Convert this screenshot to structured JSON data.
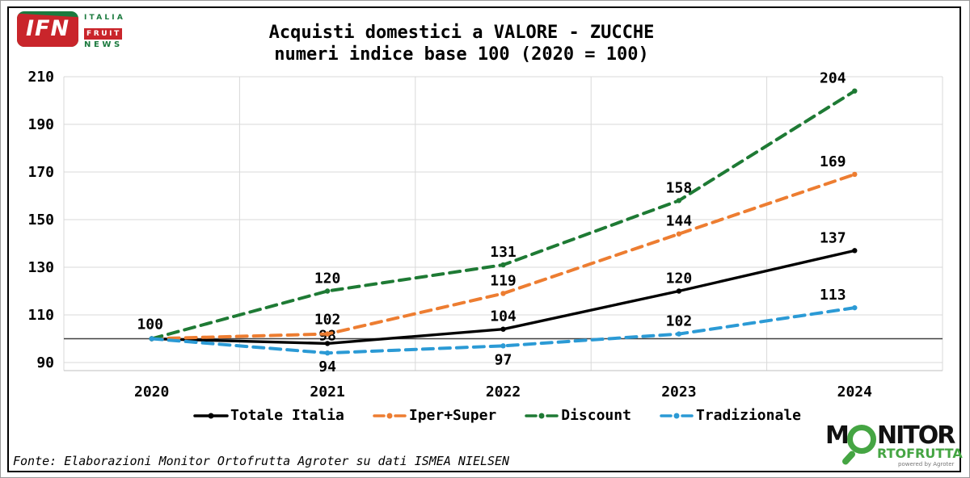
{
  "header": {
    "ifn_logo": {
      "acronym": "IFN",
      "lines": [
        "ITALIA",
        "FRUIT",
        "NEWS"
      ]
    },
    "title_line1": "Acquisti domestici a VALORE - ZUCCHE",
    "title_line2": "numeri indice base 100 (2020 = 100)"
  },
  "chart_data": {
    "type": "line",
    "title": "Acquisti domestici a VALORE - ZUCCHE",
    "subtitle": "numeri indice base 100 (2020 = 100)",
    "categories": [
      "2020",
      "2021",
      "2022",
      "2023",
      "2024"
    ],
    "y_ticks": [
      90,
      110,
      130,
      150,
      170,
      190,
      210
    ],
    "ylim": [
      87,
      213
    ],
    "baseline": 100,
    "grid": true,
    "grid_color": "#D9D9D9",
    "baseline_color": "#404040",
    "legend_position": "bottom",
    "series": [
      {
        "name": "Totale Italia",
        "color": "#000000",
        "style": "solid",
        "values": [
          100,
          98,
          104,
          120,
          137
        ],
        "labels": [
          "100",
          "98",
          "104",
          "120",
          "137"
        ]
      },
      {
        "name": "Iper+Super",
        "color": "#ED7D31",
        "style": "dashed",
        "values": [
          100,
          102,
          119,
          144,
          169
        ],
        "labels": [
          "",
          "102",
          "119",
          "144",
          "169"
        ]
      },
      {
        "name": "Discount",
        "color": "#1E7A34",
        "style": "dashed",
        "values": [
          100,
          120,
          131,
          158,
          204
        ],
        "labels": [
          "",
          "120",
          "131",
          "158",
          "204"
        ]
      },
      {
        "name": "Tradizionale",
        "color": "#2B9AD5",
        "style": "dashed",
        "values": [
          100,
          94,
          97,
          102,
          113
        ],
        "labels": [
          "",
          "94",
          "97",
          "102",
          "113"
        ]
      }
    ]
  },
  "footer": {
    "source": "Fonte: Elaborazioni Monitor Ortofrutta Agroter su dati ISMEA NIELSEN"
  },
  "monitor_logo": {
    "m_start": "M",
    "m_rest": "NITOR",
    "line2": "RTOFRUTTA",
    "powered": "powered by Agroter"
  },
  "colors": {
    "ifn_red": "#C9252B",
    "ifn_green": "#1B7A3E",
    "monitor_green": "#45A543"
  }
}
